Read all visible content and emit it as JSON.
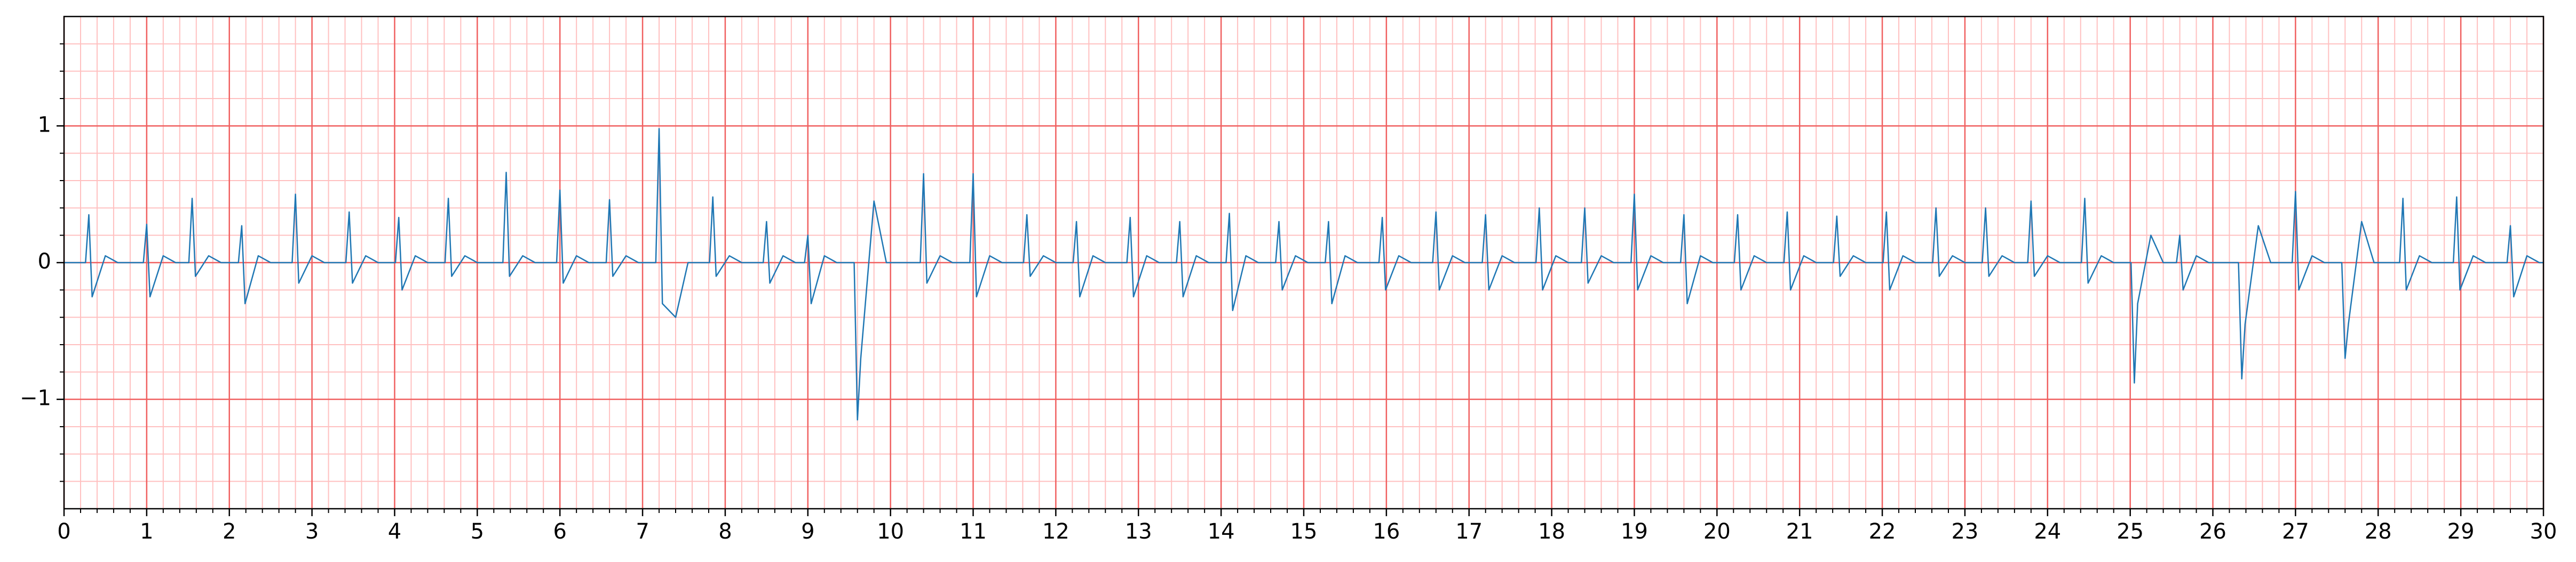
{
  "chart_data": {
    "type": "line",
    "x": [
      0,
      0.26,
      0.3,
      0.34,
      0.5,
      0.65,
      0.96,
      1.0,
      1.04,
      1.2,
      1.35,
      1.51,
      1.55,
      1.59,
      1.75,
      1.9,
      2.11,
      2.15,
      2.19,
      2.35,
      2.5,
      2.76,
      2.8,
      2.84,
      3.0,
      3.15,
      3.41,
      3.45,
      3.49,
      3.65,
      3.8,
      4.01,
      4.05,
      4.09,
      4.25,
      4.4,
      4.61,
      4.65,
      4.69,
      4.85,
      5.0,
      5.31,
      5.35,
      5.39,
      5.55,
      5.7,
      5.96,
      6.0,
      6.04,
      6.2,
      6.35,
      6.56,
      6.6,
      6.64,
      6.8,
      6.95,
      7.16,
      7.2,
      7.24,
      7.4,
      7.55,
      7.81,
      7.85,
      7.89,
      8.05,
      8.2,
      8.46,
      8.5,
      8.54,
      8.7,
      8.85,
      8.96,
      9.0,
      9.04,
      9.2,
      9.35,
      9.56,
      9.6,
      9.64,
      9.8,
      9.95,
      10.36,
      10.4,
      10.44,
      10.6,
      10.75,
      10.96,
      11.0,
      11.04,
      11.2,
      11.35,
      11.61,
      11.65,
      11.69,
      11.85,
      12.0,
      12.21,
      12.25,
      12.29,
      12.45,
      12.6,
      12.86,
      12.9,
      12.94,
      13.1,
      13.25,
      13.46,
      13.5,
      13.54,
      13.7,
      13.85,
      14.06,
      14.1,
      14.14,
      14.3,
      14.45,
      14.66,
      14.7,
      14.74,
      14.9,
      15.05,
      15.26,
      15.3,
      15.34,
      15.5,
      15.65,
      15.91,
      15.95,
      15.99,
      16.15,
      16.3,
      16.56,
      16.6,
      16.64,
      16.8,
      16.95,
      17.16,
      17.2,
      17.24,
      17.4,
      17.55,
      17.81,
      17.85,
      17.89,
      18.05,
      18.2,
      18.36,
      18.4,
      18.44,
      18.6,
      18.75,
      18.96,
      19.0,
      19.04,
      19.2,
      19.35,
      19.56,
      19.6,
      19.64,
      19.8,
      19.95,
      20.21,
      20.25,
      20.29,
      20.45,
      20.6,
      20.81,
      20.85,
      20.89,
      21.05,
      21.2,
      21.41,
      21.45,
      21.49,
      21.65,
      21.8,
      22.01,
      22.05,
      22.09,
      22.25,
      22.4,
      22.61,
      22.65,
      22.69,
      22.85,
      23.0,
      23.21,
      23.25,
      23.29,
      23.45,
      23.6,
      23.76,
      23.8,
      23.84,
      24.0,
      24.15,
      24.41,
      24.45,
      24.49,
      24.65,
      24.8,
      25.01,
      25.05,
      25.09,
      25.25,
      25.4,
      25.56,
      25.6,
      25.64,
      25.8,
      25.95,
      26.31,
      26.35,
      26.39,
      26.55,
      26.7,
      26.96,
      27.0,
      27.04,
      27.2,
      27.35,
      27.56,
      27.6,
      27.64,
      27.8,
      27.95,
      28.26,
      28.3,
      28.34,
      28.5,
      28.65,
      28.91,
      28.95,
      28.99,
      29.15,
      29.3,
      29.56,
      29.6,
      29.64,
      29.8,
      29.95,
      30
    ],
    "values": [
      0,
      0,
      0.35,
      -0.25,
      0.05,
      0,
      0,
      0.28,
      -0.25,
      0.05,
      0,
      0,
      0.47,
      -0.1,
      0.05,
      0,
      0,
      0.27,
      -0.3,
      0.05,
      0,
      0,
      0.5,
      -0.15,
      0.05,
      0,
      0,
      0.37,
      -0.15,
      0.05,
      0,
      0,
      0.33,
      -0.2,
      0.05,
      0,
      0,
      0.47,
      -0.1,
      0.05,
      0,
      0,
      0.66,
      -0.1,
      0.05,
      0,
      0,
      0.53,
      -0.15,
      0.05,
      0,
      0,
      0.46,
      -0.1,
      0.05,
      0,
      0,
      0.98,
      -0.3,
      -0.4,
      0,
      0,
      0.48,
      -0.1,
      0.05,
      0,
      0,
      0.3,
      -0.15,
      0.05,
      0,
      0,
      0.2,
      -0.3,
      0.05,
      0,
      0,
      -1.15,
      -0.7,
      0.45,
      0,
      0,
      0.65,
      -0.15,
      0.05,
      0,
      0,
      0.65,
      -0.25,
      0.05,
      0,
      0,
      0.35,
      -0.1,
      0.05,
      0,
      0,
      0.3,
      -0.25,
      0.05,
      0,
      0,
      0.33,
      -0.25,
      0.05,
      0,
      0,
      0.3,
      -0.25,
      0.05,
      0,
      0,
      0.36,
      -0.35,
      0.05,
      0,
      0,
      0.3,
      -0.2,
      0.05,
      0,
      0,
      0.3,
      -0.3,
      0.05,
      0,
      0,
      0.33,
      -0.2,
      0.05,
      0,
      0,
      0.37,
      -0.2,
      0.05,
      0,
      0,
      0.35,
      -0.2,
      0.05,
      0,
      0,
      0.4,
      -0.2,
      0.05,
      0,
      0,
      0.4,
      -0.15,
      0.05,
      0,
      0,
      0.5,
      -0.2,
      0.05,
      0,
      0,
      0.35,
      -0.3,
      0.05,
      0,
      0,
      0.35,
      -0.2,
      0.05,
      0,
      0,
      0.37,
      -0.2,
      0.05,
      0,
      0,
      0.34,
      -0.1,
      0.05,
      0,
      0,
      0.37,
      -0.2,
      0.05,
      0,
      0,
      0.4,
      -0.1,
      0.05,
      0,
      0,
      0.4,
      -0.1,
      0.05,
      0,
      0,
      0.45,
      -0.1,
      0.05,
      0,
      0,
      0.47,
      -0.15,
      0.05,
      0,
      0,
      -0.88,
      -0.3,
      0.2,
      0,
      0,
      0.2,
      -0.2,
      0.05,
      0,
      0,
      -0.85,
      -0.45,
      0.27,
      0,
      0,
      0.52,
      -0.2,
      0.05,
      0,
      0,
      -0.7,
      -0.45,
      0.3,
      0,
      0,
      0.47,
      -0.2,
      0.05,
      0,
      0,
      0.48,
      -0.2,
      0.05,
      0,
      0,
      0.27,
      -0.25,
      0.05,
      0,
      0
    ],
    "color": "#1f77b4",
    "xlim": [
      0,
      30
    ],
    "xticks": [
      0,
      1,
      2,
      3,
      4,
      5,
      6,
      7,
      8,
      9,
      10,
      11,
      12,
      13,
      14,
      15,
      16,
      17,
      18,
      19,
      20,
      21,
      22,
      23,
      24,
      25,
      26,
      27,
      28,
      29,
      30
    ],
    "ylim": [
      -1.8,
      1.8
    ],
    "yticks": [
      {
        "value": -1,
        "label": "−1"
      },
      0,
      1
    ],
    "grid": true
  }
}
